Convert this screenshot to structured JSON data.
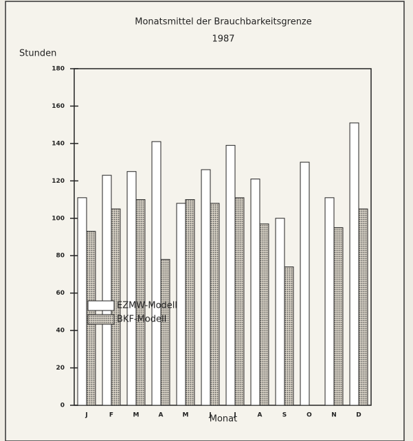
{
  "chart_data": {
    "type": "bar",
    "title": "Monatsmittel der Brauchbarkeitsgrenze",
    "subtitle": "1987",
    "y_label": "Stunden",
    "x_label": "Monat",
    "categories": [
      "J",
      "F",
      "M",
      "A",
      "M",
      "J",
      "J",
      "A",
      "S",
      "O",
      "N",
      "D"
    ],
    "series": [
      {
        "name": "EZMW-Modell",
        "color": "#ffffff",
        "values": [
          111,
          123,
          125,
          141,
          108,
          126,
          139,
          121,
          100,
          130,
          111,
          151
        ]
      },
      {
        "name": "BKF-Modell",
        "color": "#b8b0a2",
        "values": [
          93,
          105,
          110,
          78,
          110,
          108,
          111,
          97,
          74,
          null,
          95,
          105
        ]
      }
    ],
    "ylim": [
      0,
      180
    ],
    "yticks": [
      0,
      20,
      40,
      60,
      80,
      100,
      120,
      140,
      160,
      180
    ],
    "legend": "left"
  }
}
